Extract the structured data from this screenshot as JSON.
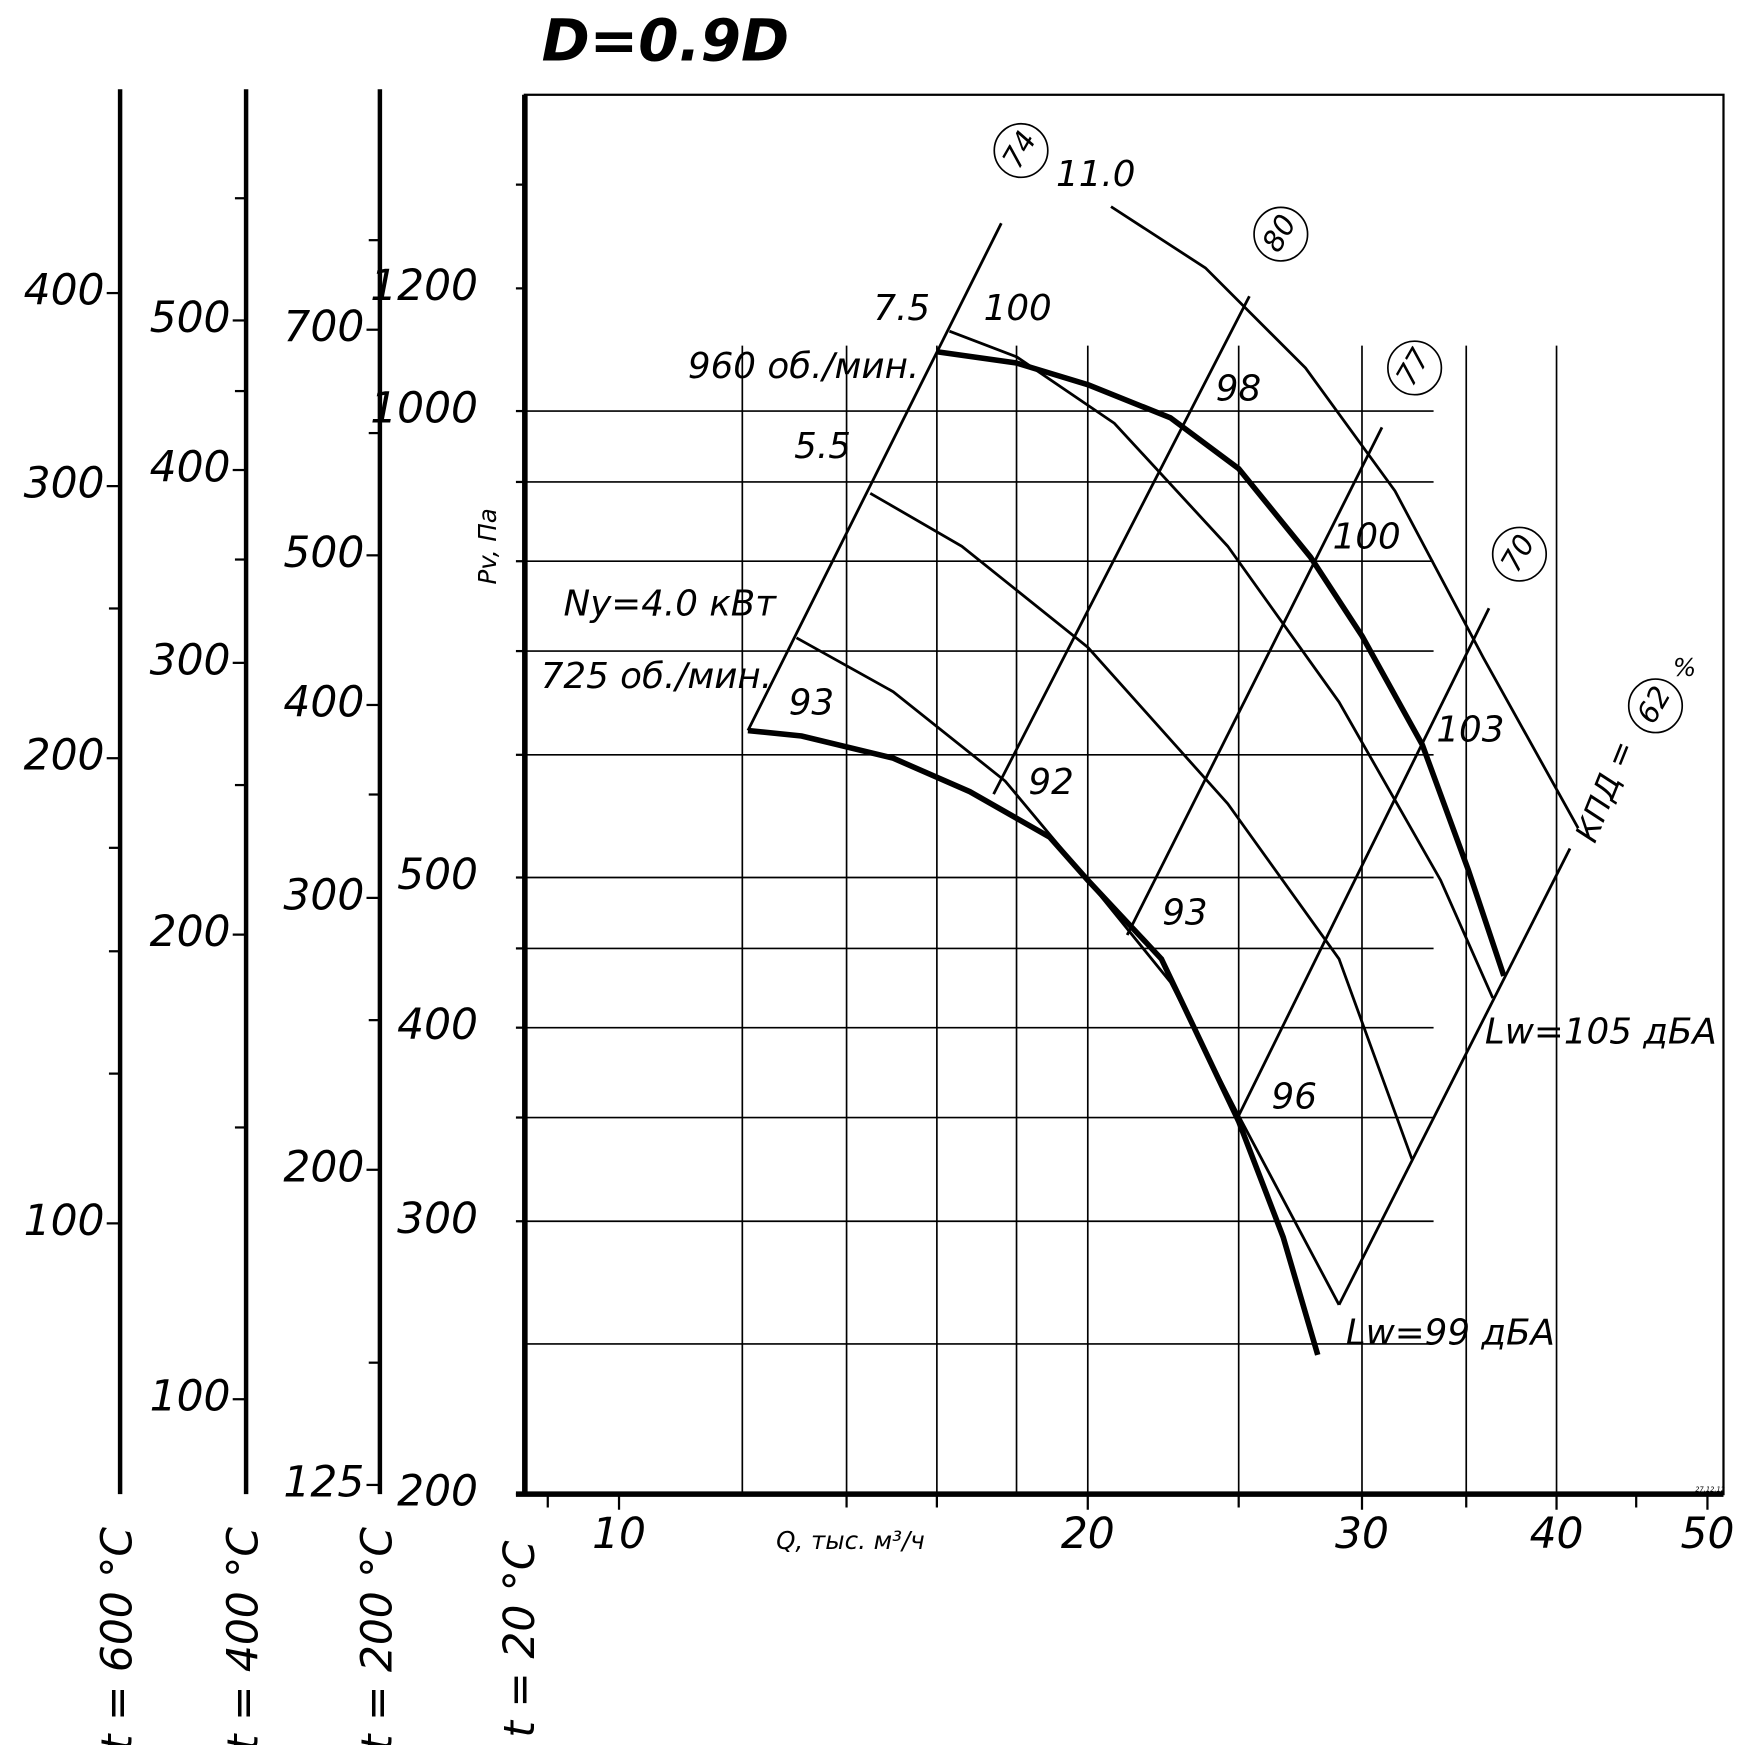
{
  "chart_data": {
    "type": "fan-curve",
    "title": "D=0.9D",
    "x_label": "Q, тыс. м³/ч",
    "y_label": "Pv, Па",
    "y_axis_caption": "t = 20 °C",
    "log_x": true,
    "log_y": true,
    "xlim": [
      8.7,
      51.2
    ],
    "xticks": [
      10,
      20,
      30,
      40,
      50
    ],
    "x_minor_ticks": [
      9,
      14,
      16,
      25,
      35,
      45
    ],
    "x_grid": [
      12,
      14,
      16,
      18,
      20,
      25,
      30,
      35,
      40
    ],
    "ylim": [
      200,
      1600
    ],
    "yticks": [
      200,
      300,
      400,
      500,
      1000,
      1200
    ],
    "y_minor_ticks": [
      350,
      450,
      600,
      700,
      800,
      900,
      1400
    ],
    "y_grid": [
      250,
      300,
      350,
      400,
      450,
      500,
      600,
      700,
      800,
      900,
      1000
    ],
    "color": "#000000",
    "series": [
      {
        "name": "960 об./мин.",
        "kind": "rpm",
        "x": [
          16.0,
          18.0,
          20.0,
          22.6,
          25.0,
          27.8,
          30.0,
          32.8,
          35.1,
          37.0
        ],
        "y": [
          1092,
          1074,
          1040,
          990,
          918,
          805,
          716,
          609,
          506,
          432
        ]
      },
      {
        "name": "725 об./мин.",
        "kind": "rpm",
        "x": [
          12.1,
          13.1,
          15.0,
          16.8,
          18.9,
          20.0,
          22.3,
          25.0,
          26.7,
          28.1
        ],
        "y": [
          622,
          617,
          597,
          568,
          531,
          498,
          443,
          348,
          293,
          246
        ]
      },
      {
        "name": "Ny=4.0 кВт",
        "kind": "power",
        "x": [
          13.0,
          15.0,
          17.7,
          20.0,
          22.6,
          25.0,
          29.0
        ],
        "y": [
          714,
          659,
          577,
          498,
          428,
          351,
          265
        ]
      },
      {
        "name": "5.5",
        "kind": "power",
        "x": [
          14.5,
          16.6,
          20.0,
          24.6,
          29.0,
          32.3
        ],
        "y": [
          885,
          818,
          704,
          558,
          443,
          329
        ]
      },
      {
        "name": "7.5",
        "kind": "power",
        "x": [
          16.3,
          18.0,
          20.8,
          24.6,
          29.0,
          33.7,
          36.4
        ],
        "y": [
          1126,
          1084,
          982,
          818,
          649,
          498,
          418
        ]
      },
      {
        "name": "11.0",
        "kind": "power",
        "x": [
          20.7,
          23.8,
          27.6,
          31.5,
          35.9,
          41.3
        ],
        "y": [
          1355,
          1237,
          1066,
          888,
          693,
          538
        ]
      },
      {
        "name": "74",
        "kind": "efficiency",
        "x": [
          12.1,
          17.6
        ],
        "y": [
          622,
          1322
        ]
      },
      {
        "name": "80",
        "kind": "efficiency",
        "x": [
          17.4,
          25.4
        ],
        "y": [
          566,
          1186
        ]
      },
      {
        "name": "77",
        "kind": "efficiency",
        "x": [
          21.2,
          30.9
        ],
        "y": [
          459,
          976
        ]
      },
      {
        "name": "70",
        "kind": "efficiency",
        "x": [
          25.0,
          36.2
        ],
        "y": [
          351,
          746
        ]
      },
      {
        "name": "62",
        "kind": "efficiency",
        "x": [
          29.0,
          40.8
        ],
        "y": [
          265,
          522
        ]
      }
    ],
    "annotations": [
      "100",
      "98",
      "100",
      "93",
      "92",
      "103",
      "93",
      "Lw=105 дБА",
      "96",
      "Lw=99 дБА",
      "КПД =",
      "%",
      "27.12.12"
    ],
    "aux_axes": [
      {
        "caption": "t = 600 °C",
        "ylim": [
          66.8,
          542
        ],
        "yticks": [
          100,
          200,
          300,
          400
        ],
        "minor_ticks": [
          125,
          150,
          175,
          250
        ]
      },
      {
        "caption": "t = 400 °C",
        "ylim": [
          86.8,
          706
        ],
        "yticks": [
          100,
          200,
          300,
          400,
          500
        ],
        "minor_ticks": [
          150,
          250,
          350,
          450,
          600
        ]
      },
      {
        "caption": "t = 200 °C",
        "ylim": [
          123.3,
          1002
        ],
        "yticks": [
          125,
          200,
          300,
          400,
          500,
          700
        ],
        "minor_ticks": [
          150,
          250,
          350,
          600,
          800
        ]
      }
    ]
  }
}
